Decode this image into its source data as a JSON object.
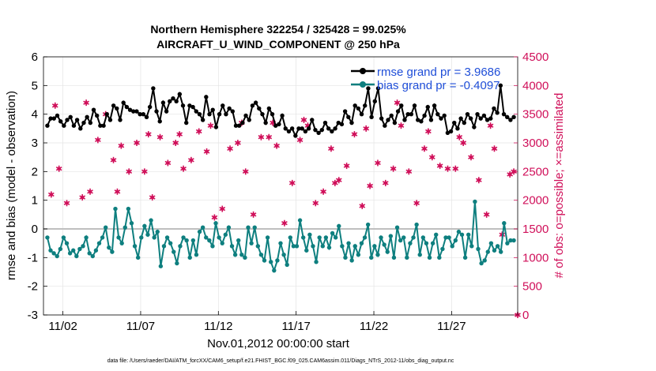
{
  "chart_data": {
    "type": "line",
    "title": "Northern Hemisphere 322254 / 325428 = 99.025%",
    "subtitle": "AIRCRAFT_U_WIND_COMPONENT @ 250 hPa",
    "xlabel": "Nov.01,2012 00:00:00 start",
    "ylabel": "rmse and bias (model - observation)",
    "y2label": "# of obs: o=possible; ×=assimilated",
    "footnote": "data file: /Users/raeder/DAI/ATM_forcXX/CAM6_setup/f.e21.FHIST_BGC.f09_025.CAM6assim.011/Diags_NTrS_2012-11/obs_diag_output.nc",
    "x_ticks": [
      "11/02",
      "11/07",
      "11/12",
      "11/17",
      "11/22",
      "11/27"
    ],
    "x_tick_days": [
      2,
      7,
      12,
      17,
      22,
      27
    ],
    "xlim_days": [
      0.75,
      31.25
    ],
    "ylim": [
      -3,
      6
    ],
    "y_ticks": [
      "-3",
      "-2",
      "-1",
      "0",
      "1",
      "2",
      "3",
      "4",
      "5",
      "6"
    ],
    "y2lim": [
      0,
      4500
    ],
    "y2_ticks": [
      "0",
      "500",
      "1000",
      "1500",
      "2000",
      "2500",
      "3000",
      "3500",
      "4000",
      "4500"
    ],
    "colors": {
      "rmse": "#000000",
      "bias": "#0e7f7f",
      "obs": "#d0105a",
      "zero_line": "#bfbfbf",
      "legend_text": "#1f4ed8"
    },
    "series": [
      {
        "name": "rmse grand pr = 3.9686",
        "key": "rmse",
        "values": [
          3.6,
          3.85,
          3.85,
          3.95,
          3.75,
          3.6,
          3.8,
          3.9,
          3.6,
          3.8,
          3.5,
          3.7,
          3.9,
          3.7,
          4.15,
          3.95,
          3.6,
          3.6,
          4.0,
          3.8,
          4.3,
          4.2,
          3.8,
          4.4,
          4.25,
          4.15,
          4.1,
          4.1,
          4.0,
          4.0,
          3.9,
          4.25,
          4.9,
          4.1,
          3.75,
          4.4,
          4.1,
          4.45,
          4.55,
          4.45,
          4.7,
          4.3,
          3.7,
          4.3,
          4.25,
          4.1,
          4.0,
          3.8,
          4.6,
          4.0,
          4.15,
          3.55,
          4.0,
          4.3,
          4.0,
          4.2,
          4.1,
          3.6,
          3.6,
          3.7,
          3.95,
          3.8,
          4.3,
          4.4,
          4.2,
          4.0,
          3.7,
          4.2,
          4.0,
          3.6,
          3.65,
          3.95,
          3.5,
          3.4,
          3.5,
          3.25,
          3.5,
          3.5,
          3.4,
          3.5,
          3.8,
          3.45,
          3.35,
          3.45,
          3.7,
          3.5,
          3.4,
          3.5,
          3.7,
          3.65,
          4.1,
          3.9,
          3.7,
          4.3,
          4.2,
          4.0,
          4.3,
          4.9,
          3.9,
          4.45,
          4.9,
          3.85,
          3.6,
          3.8,
          3.95,
          3.7,
          4.1,
          4.3,
          3.8,
          4.0,
          4.0,
          4.3,
          3.8,
          3.75,
          3.95,
          4.25,
          3.8,
          4.3,
          4.0,
          3.85,
          3.95,
          3.35,
          3.4,
          3.7,
          3.5,
          3.85,
          3.7,
          4.0,
          3.85,
          3.55,
          4.0,
          3.85,
          3.95,
          3.8,
          3.85,
          4.2,
          4.05,
          5.0,
          4.0,
          3.9,
          3.8,
          3.9
        ]
      },
      {
        "name": "bias grand pr = -0.4097",
        "key": "bias",
        "values": [
          -0.3,
          -0.75,
          -0.85,
          -0.95,
          -0.7,
          -0.3,
          -0.5,
          -0.85,
          -0.75,
          -0.95,
          -0.7,
          -0.6,
          -0.3,
          -0.85,
          -0.95,
          -0.75,
          -0.5,
          -0.3,
          0.05,
          -0.65,
          -0.8,
          0.7,
          -0.3,
          -0.5,
          0.05,
          0.7,
          0.2,
          -0.6,
          -1.0,
          -0.3,
          0.1,
          -0.2,
          0.3,
          -0.3,
          -0.1,
          -1.3,
          -0.6,
          -0.3,
          -0.5,
          -0.8,
          -1.2,
          -0.6,
          -0.3,
          -0.4,
          -1.0,
          -0.4,
          -0.9,
          -0.1,
          0.05,
          -0.3,
          -0.4,
          -0.6,
          0.2,
          -0.3,
          -0.5,
          -0.2,
          0.05,
          -0.6,
          -0.9,
          -0.4,
          -0.9,
          -1.0,
          0.05,
          -0.5,
          0.05,
          -0.6,
          -0.9,
          -1.1,
          -0.3,
          -1.15,
          -1.45,
          -1.1,
          -0.5,
          -0.9,
          -1.25,
          -0.3,
          -0.6,
          -0.6,
          0.3,
          -0.3,
          -0.75,
          -0.2,
          -0.6,
          -1.15,
          -0.3,
          -0.6,
          -0.3,
          -0.65,
          -0.15,
          -0.3,
          0.1,
          -0.6,
          -1.0,
          -0.5,
          -1.1,
          -0.6,
          -0.9,
          -0.5,
          -0.3,
          0.15,
          -1.0,
          -0.6,
          -0.9,
          -0.3,
          -0.55,
          -0.8,
          -0.25,
          -1.0,
          0.05,
          -0.4,
          -0.3,
          -1.0,
          -0.5,
          -0.3,
          0.15,
          -0.9,
          -0.3,
          -0.5,
          -1.0,
          -0.5,
          -0.2,
          -1.0,
          -0.7,
          -0.3,
          -0.3,
          -0.6,
          -0.4,
          -0.1,
          -0.2,
          -1.0,
          -0.2,
          -0.6,
          0.95,
          -0.7,
          -1.2,
          -1.1,
          -0.8,
          -0.5,
          -0.75,
          -0.6,
          -0.8,
          0.2,
          -0.5,
          -0.4,
          -0.4
        ]
      },
      {
        "name": "# of obs assimilated",
        "key": "obs",
        "days": [
          1.25,
          1.75,
          3.25,
          3.75,
          4.25,
          5.25,
          6.25,
          6.75,
          7.25,
          7.75,
          9.25,
          9.75,
          11.25,
          12.25,
          13.25,
          14.25,
          15.25,
          16.25,
          17.25,
          18.25,
          19.25,
          20.25,
          21.25,
          22.25,
          23.25,
          24.25,
          25.25,
          26.25,
          27.25,
          28.25,
          29.25,
          30.25,
          31.25,
          2.25,
          4.75,
          5.75,
          8.25,
          8.75,
          10.25,
          10.75,
          11.75,
          12.75,
          13.75,
          14.75,
          15.75,
          16.75,
          17.75,
          18.75,
          19.75,
          20.75,
          21.75,
          22.75,
          23.75,
          24.75,
          25.75,
          26.75,
          27.75,
          28.75,
          29.75,
          30.75,
          1.5,
          3.5,
          5.5,
          7.5,
          9.5,
          11.5,
          13.5,
          15.5,
          17.5,
          19.5,
          21.5,
          23.5,
          25.5,
          27.5,
          29.5,
          31.0
        ],
        "values": [
          2100,
          2550,
          2050,
          2150,
          3050,
          2700,
          2500,
          3000,
          2500,
          2050,
          3000,
          2550,
          2850,
          1850,
          3000,
          1750,
          3100,
          1600,
          3050,
          1950,
          2900,
          2600,
          1900,
          2650,
          2550,
          2500,
          2900,
          2600,
          2550,
          2750,
          1750,
          1400,
          0,
          1950,
          3500,
          2950,
          3100,
          2650,
          2700,
          3200,
          1700,
          2900,
          2500,
          3100,
          2950,
          2300,
          3300,
          2150,
          2350,
          3150,
          2250,
          2300,
          3300,
          1950,
          2750,
          2550,
          3000,
          2350,
          2900,
          2450,
          3650,
          3700,
          2150,
          3150,
          3150,
          3300,
          3350,
          3350,
          3400,
          2300,
          3250,
          3700,
          3200,
          3100,
          3300,
          2500
        ]
      }
    ]
  }
}
